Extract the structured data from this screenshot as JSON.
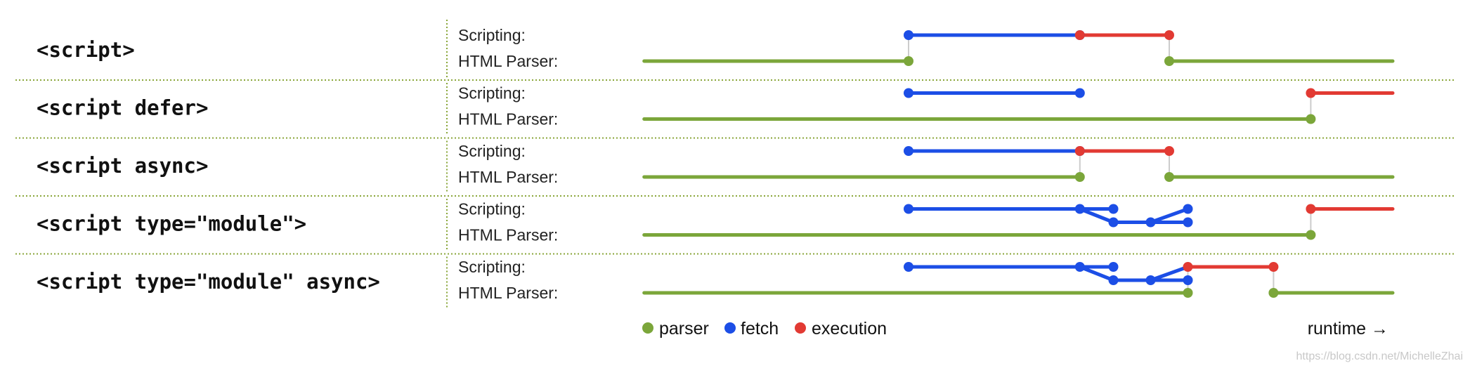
{
  "colors": {
    "parser": "#7ba63a",
    "fetch": "#1c4ee6",
    "execution": "#e23a33",
    "separator": "#8aa63a",
    "connector": "#cccccc"
  },
  "lane_labels": {
    "scripting": "Scripting:",
    "parser": "HTML Parser:"
  },
  "rows": [
    {
      "label": "<script>",
      "scripting": [
        {
          "type": "fetch",
          "start": 0,
          "end": 0.23
        },
        {
          "type": "execution",
          "start": 0.23,
          "end": 0.35
        }
      ],
      "branch": null,
      "parser": [
        {
          "start": -0.355,
          "end": 0
        },
        {
          "start": 0.35,
          "end": 0.65
        }
      ],
      "links": [
        0,
        0.35
      ]
    },
    {
      "label": "<script defer>",
      "scripting": [
        {
          "type": "fetch",
          "start": 0,
          "end": 0.23
        },
        {
          "type": "execution",
          "start": 0.54,
          "end": 0.65
        }
      ],
      "branch": null,
      "parser": [
        {
          "start": -0.355,
          "end": 0.54
        }
      ],
      "links": [
        0.54
      ]
    },
    {
      "label": "<script async>",
      "scripting": [
        {
          "type": "fetch",
          "start": 0,
          "end": 0.23
        },
        {
          "type": "execution",
          "start": 0.23,
          "end": 0.35
        }
      ],
      "branch": null,
      "parser": [
        {
          "start": -0.355,
          "end": 0.23
        },
        {
          "start": 0.35,
          "end": 0.65
        }
      ],
      "links": [
        0.23,
        0.35
      ]
    },
    {
      "label": "<script type=\"module\">",
      "scripting": [
        {
          "type": "fetch",
          "start": 0,
          "end": 0.23
        },
        {
          "type": "execution",
          "start": 0.54,
          "end": 0.65
        }
      ],
      "branch": {
        "split": 0.23,
        "upper_end": 0.275,
        "mid": 0.325,
        "join": 0.375
      },
      "parser": [
        {
          "start": -0.355,
          "end": 0.54
        }
      ],
      "links": [
        0.54
      ]
    },
    {
      "label": "<script type=\"module\" async>",
      "scripting": [
        {
          "type": "fetch",
          "start": 0,
          "end": 0.23
        },
        {
          "type": "execution",
          "start": 0.375,
          "end": 0.49
        }
      ],
      "branch": {
        "split": 0.23,
        "upper_end": 0.275,
        "mid": 0.325,
        "join": 0.375
      },
      "parser": [
        {
          "start": -0.355,
          "end": 0.375
        },
        {
          "start": 0.49,
          "end": 0.65
        }
      ],
      "links": [
        0.375,
        0.49
      ]
    }
  ],
  "legend": [
    {
      "key": "parser",
      "label": "parser"
    },
    {
      "key": "fetch",
      "label": "fetch"
    },
    {
      "key": "execution",
      "label": "execution"
    }
  ],
  "axis_label": "runtime →",
  "watermark": "https://blog.csdn.net/MichelleZhai"
}
